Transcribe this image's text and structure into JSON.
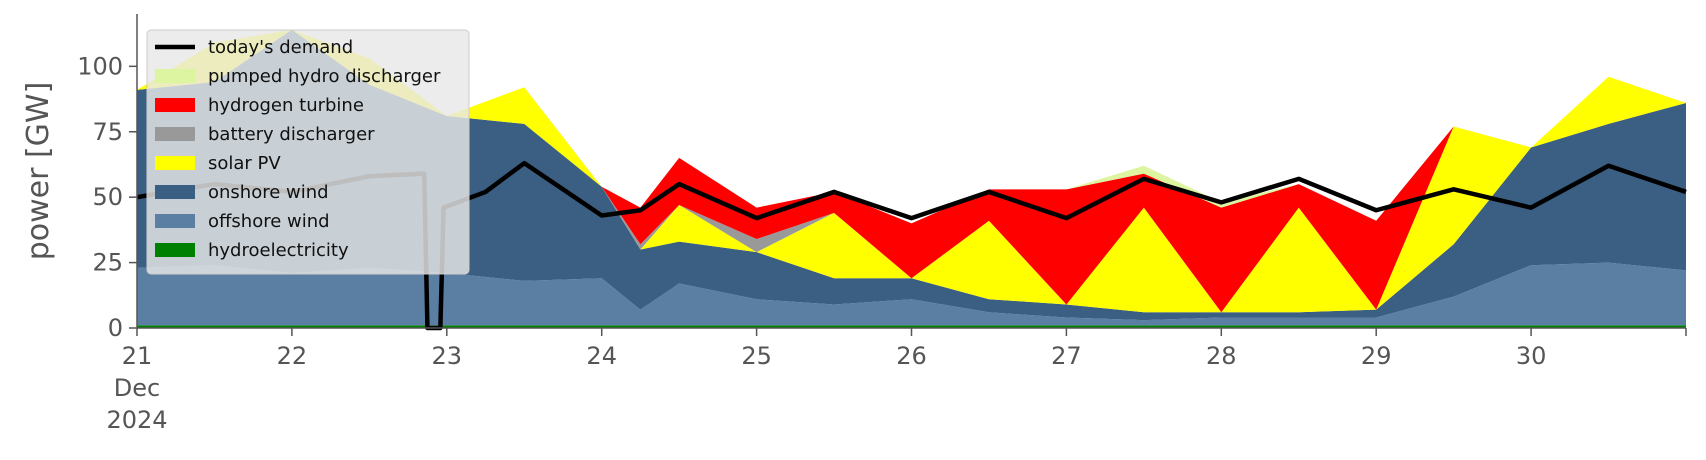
{
  "chart_data": {
    "type": "area",
    "ylabel": "power [GW]",
    "ylim": [
      0,
      120
    ],
    "xlim": [
      "2024-12-21",
      "2024-12-31"
    ],
    "grid": false,
    "legend_placement": "top-left",
    "x_ticks": [
      {
        "value": "2024-12-21",
        "lines": [
          "21",
          "Dec",
          "2024"
        ]
      },
      {
        "value": "2024-12-22",
        "lines": [
          "22"
        ]
      },
      {
        "value": "2024-12-23",
        "lines": [
          "23"
        ]
      },
      {
        "value": "2024-12-24",
        "lines": [
          "24"
        ]
      },
      {
        "value": "2024-12-25",
        "lines": [
          "25"
        ]
      },
      {
        "value": "2024-12-26",
        "lines": [
          "26"
        ]
      },
      {
        "value": "2024-12-27",
        "lines": [
          "27"
        ]
      },
      {
        "value": "2024-12-28",
        "lines": [
          "28"
        ]
      },
      {
        "value": "2024-12-29",
        "lines": [
          "29"
        ]
      },
      {
        "value": "2024-12-30",
        "lines": [
          "30"
        ]
      }
    ],
    "y_ticks": [
      {
        "value": 0,
        "label": "0"
      },
      {
        "value": 25,
        "label": "25"
      },
      {
        "value": 50,
        "label": "50"
      },
      {
        "value": 75,
        "label": "75"
      },
      {
        "value": 100,
        "label": "100"
      }
    ],
    "x": [
      "2024-12-21 00:00",
      "2024-12-21 12:00",
      "2024-12-22 00:00",
      "2024-12-22 12:00",
      "2024-12-23 00:00",
      "2024-12-23 12:00",
      "2024-12-24 00:00",
      "2024-12-24 06:00",
      "2024-12-24 12:00",
      "2024-12-25 00:00",
      "2024-12-25 12:00",
      "2024-12-26 00:00",
      "2024-12-26 12:00",
      "2024-12-27 00:00",
      "2024-12-27 12:00",
      "2024-12-28 00:00",
      "2024-12-28 12:00",
      "2024-12-29 00:00",
      "2024-12-29 12:00",
      "2024-12-30 00:00",
      "2024-12-30 12:00",
      "2024-12-31 00:00"
    ],
    "series": [
      {
        "name": "hydroelectricity",
        "color": "#008000",
        "values": [
          1,
          1,
          1,
          1,
          1,
          1,
          1,
          1,
          1,
          1,
          1,
          1,
          1,
          1,
          1,
          1,
          1,
          1,
          1,
          1,
          1,
          1
        ]
      },
      {
        "name": "offshore wind",
        "color": "#5b7fa3",
        "values": [
          22,
          23,
          20,
          22,
          20,
          17,
          18,
          6,
          16,
          10,
          8,
          10,
          5,
          3,
          2,
          3,
          3,
          3,
          11,
          23,
          24,
          21
        ]
      },
      {
        "name": "onshore wind",
        "color": "#3a5f82",
        "values": [
          68,
          70,
          93,
          70,
          60,
          60,
          35,
          23,
          16,
          18,
          10,
          8,
          5,
          5,
          3,
          2,
          2,
          3,
          20,
          45,
          53,
          64
        ]
      },
      {
        "name": "solar PV",
        "color": "#ffff00",
        "values": [
          0,
          15,
          0,
          10,
          0,
          14,
          0,
          0,
          14,
          0,
          25,
          0,
          30,
          0,
          40,
          0,
          40,
          0,
          45,
          0,
          18,
          0
        ]
      },
      {
        "name": "battery discharger",
        "color": "#999999",
        "values": [
          0,
          0,
          0,
          0,
          0,
          0,
          0,
          2,
          0,
          5,
          0,
          0,
          0,
          0,
          0,
          0,
          0,
          0,
          0,
          0,
          0,
          0
        ]
      },
      {
        "name": "hydrogen turbine",
        "color": "#ff0000",
        "values": [
          0,
          0,
          0,
          0,
          0,
          0,
          0,
          14,
          18,
          12,
          8,
          21,
          12,
          44,
          13,
          40,
          9,
          34,
          0,
          0,
          0,
          0
        ]
      },
      {
        "name": "pumped hydro discharger",
        "color": "#ddf5a0",
        "values": [
          0,
          0,
          0,
          0,
          0,
          0,
          0,
          0,
          0,
          0,
          0,
          0,
          0,
          0,
          3,
          2,
          0,
          0,
          0,
          0,
          0,
          0
        ]
      }
    ],
    "demand": {
      "name": "today's demand",
      "color": "#000000",
      "x": [
        "2024-12-21 00:00",
        "2024-12-21 12:00",
        "2024-12-22 00:00",
        "2024-12-22 12:00",
        "2024-12-22 20:30",
        "2024-12-22 21:00",
        "2024-12-22 23:00",
        "2024-12-22 23:30",
        "2024-12-23 06:00",
        "2024-12-23 12:00",
        "2024-12-24 00:00",
        "2024-12-24 06:00",
        "2024-12-24 12:00",
        "2024-12-25 00:00",
        "2024-12-25 12:00",
        "2024-12-26 00:00",
        "2024-12-26 12:00",
        "2024-12-27 00:00",
        "2024-12-27 12:00",
        "2024-12-28 00:00",
        "2024-12-28 12:00",
        "2024-12-29 00:00",
        "2024-12-29 12:00",
        "2024-12-30 00:00",
        "2024-12-30 12:00",
        "2024-12-31 00:00"
      ],
      "values": [
        50,
        55,
        52,
        58,
        59,
        0,
        0,
        46,
        52,
        63,
        43,
        45,
        55,
        42,
        52,
        42,
        52,
        42,
        57,
        48,
        57,
        45,
        53,
        46,
        62,
        52
      ]
    },
    "legend": [
      {
        "label": "today's demand",
        "kind": "line",
        "color": "#000000"
      },
      {
        "label": "pumped hydro discharger",
        "kind": "patch",
        "color": "#ddf5a0"
      },
      {
        "label": "hydrogen turbine",
        "kind": "patch",
        "color": "#ff0000"
      },
      {
        "label": "battery discharger",
        "kind": "patch",
        "color": "#999999"
      },
      {
        "label": "solar PV",
        "kind": "patch",
        "color": "#ffff00"
      },
      {
        "label": "onshore wind",
        "kind": "patch",
        "color": "#3a5f82"
      },
      {
        "label": "offshore wind",
        "kind": "patch",
        "color": "#5b7fa3"
      },
      {
        "label": "hydroelectricity",
        "kind": "patch",
        "color": "#008000"
      }
    ]
  }
}
